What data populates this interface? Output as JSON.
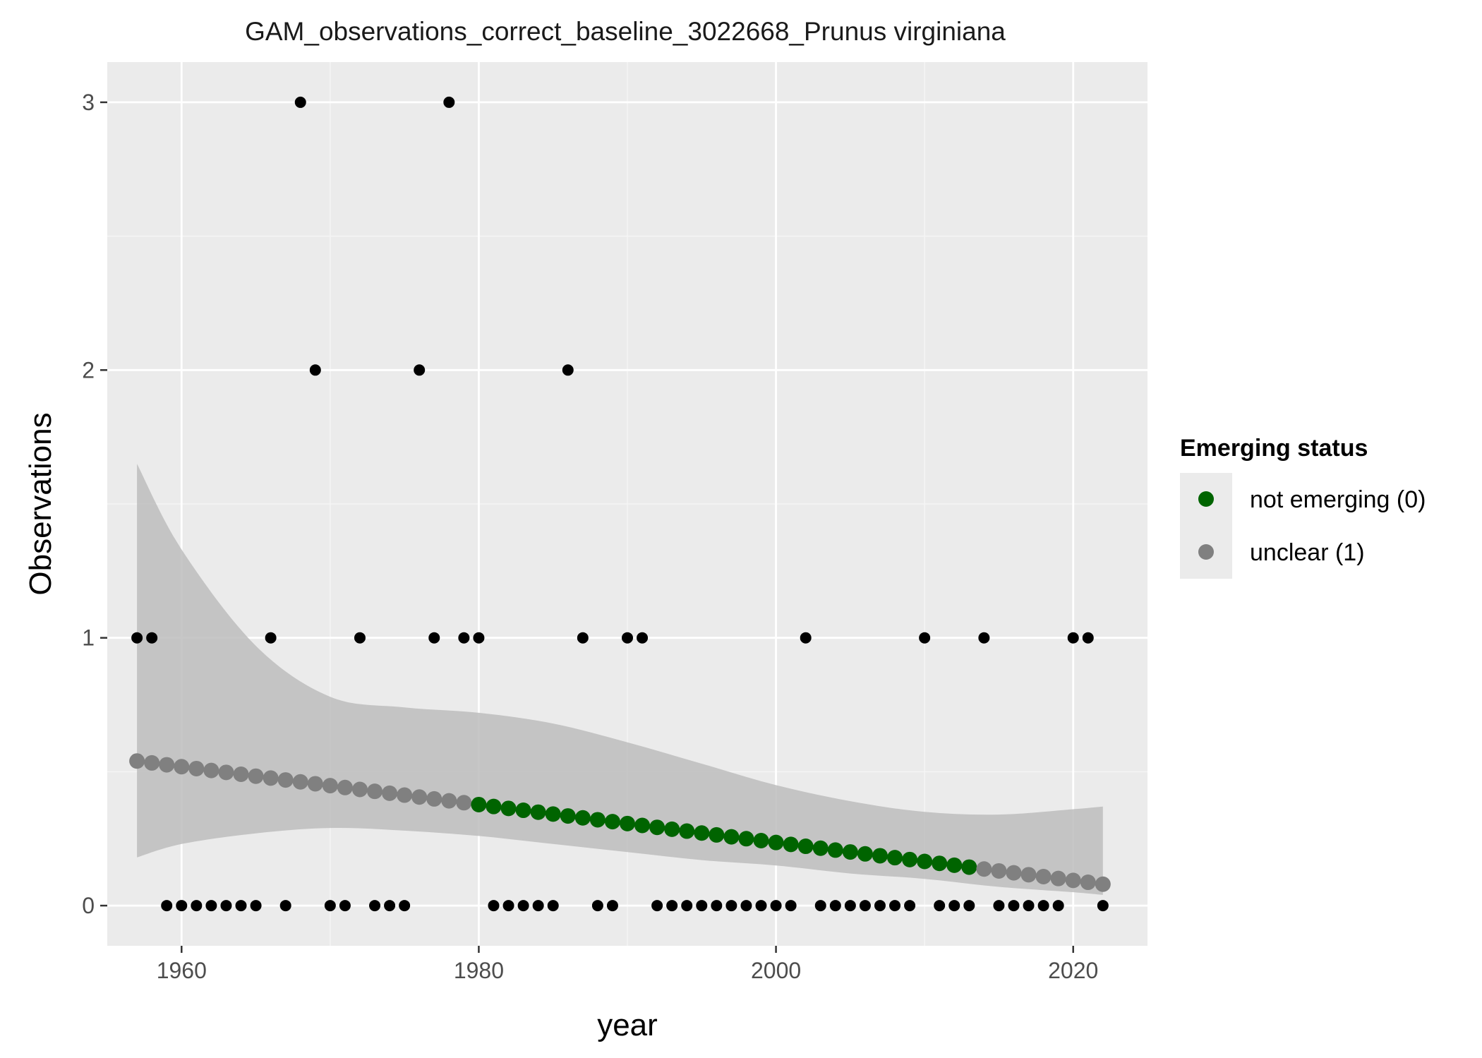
{
  "chart_data": {
    "type": "scatter",
    "title": "GAM_observations_correct_baseline_3022668_Prunus virginiana",
    "xlabel": "year",
    "ylabel": "Observations",
    "xlim": [
      1955,
      2025
    ],
    "ylim": [
      -0.15,
      3.15
    ],
    "x_ticks": [
      1960,
      1980,
      2000,
      2020
    ],
    "y_ticks": [
      0,
      1,
      2,
      3
    ],
    "grid": true,
    "legend": {
      "title": "Emerging status",
      "position": "right",
      "entries": [
        {
          "label": "not emerging (0)",
          "color": "#006400"
        },
        {
          "label": "unclear (1)",
          "color": "#808080"
        }
      ]
    },
    "observations": {
      "x": [
        1957,
        1958,
        1959,
        1960,
        1961,
        1962,
        1963,
        1964,
        1965,
        1966,
        1967,
        1968,
        1969,
        1970,
        1971,
        1972,
        1973,
        1974,
        1975,
        1976,
        1977,
        1978,
        1979,
        1980,
        1981,
        1982,
        1983,
        1984,
        1985,
        1986,
        1987,
        1988,
        1989,
        1990,
        1991,
        1992,
        1993,
        1994,
        1995,
        1996,
        1997,
        1998,
        1999,
        2000,
        2001,
        2002,
        2003,
        2004,
        2005,
        2006,
        2007,
        2008,
        2009,
        2010,
        2011,
        2012,
        2013,
        2014,
        2015,
        2016,
        2017,
        2018,
        2019,
        2020,
        2021,
        2022
      ],
      "y": [
        1,
        1,
        0,
        0,
        0,
        0,
        0,
        0,
        0,
        1,
        0,
        3,
        2,
        0,
        0,
        1,
        0,
        0,
        0,
        2,
        1,
        3,
        1,
        1,
        0,
        0,
        0,
        0,
        0,
        2,
        1,
        0,
        0,
        1,
        1,
        0,
        0,
        0,
        0,
        0,
        0,
        0,
        0,
        0,
        0,
        1,
        0,
        0,
        0,
        0,
        0,
        0,
        0,
        1,
        0,
        0,
        0,
        1,
        0,
        0,
        0,
        0,
        0,
        1,
        1,
        0
      ],
      "color": "#000000"
    },
    "fit": {
      "x_start": 1957,
      "x_end": 2022,
      "y_start": 0.54,
      "y_end": 0.08,
      "status_ranges": [
        {
          "from": 1957,
          "to": 1979,
          "status": "unclear (1)",
          "color": "#808080"
        },
        {
          "from": 1980,
          "to": 2013,
          "status": "not emerging (0)",
          "color": "#006400"
        },
        {
          "from": 2014,
          "to": 2022,
          "status": "unclear (1)",
          "color": "#808080"
        }
      ]
    },
    "confidence_band": {
      "color": "#bdbdbd",
      "x": [
        1957,
        1960,
        1965,
        1970,
        1975,
        1980,
        1985,
        1990,
        1995,
        2000,
        2005,
        2010,
        2015,
        2020,
        2022
      ],
      "upper": [
        1.65,
        1.33,
        0.97,
        0.78,
        0.74,
        0.72,
        0.68,
        0.61,
        0.53,
        0.45,
        0.39,
        0.35,
        0.34,
        0.36,
        0.37
      ],
      "lower": [
        0.18,
        0.23,
        0.27,
        0.29,
        0.28,
        0.26,
        0.23,
        0.2,
        0.17,
        0.15,
        0.12,
        0.1,
        0.07,
        0.05,
        0.04
      ]
    }
  }
}
